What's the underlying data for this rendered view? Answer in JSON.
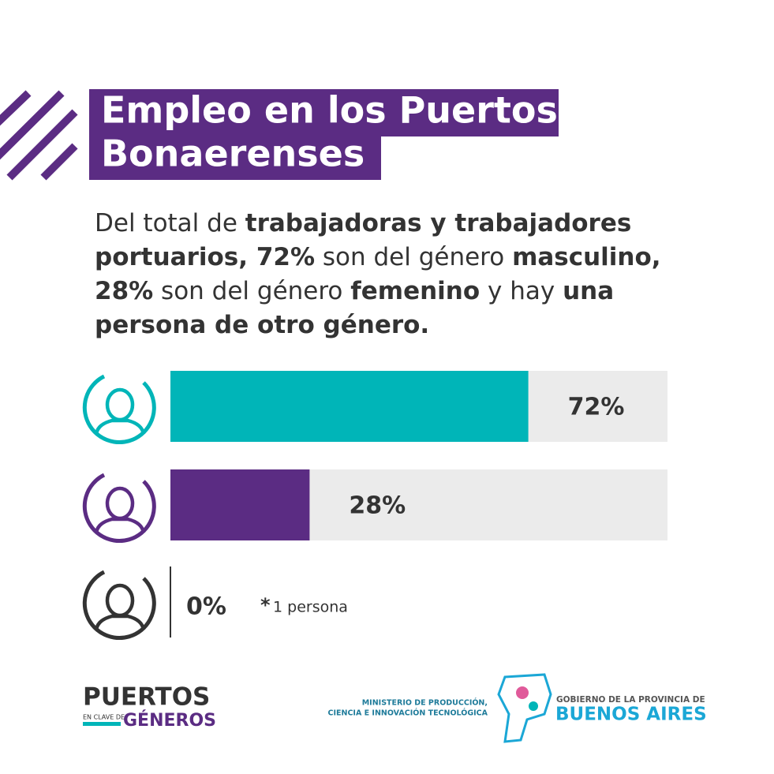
{
  "chart_data": {
    "type": "hbar",
    "title_lines": [
      "Empleo en los Puertos",
      "Bonaerenses"
    ],
    "subtitle_segments": [
      {
        "text": "Del total de ",
        "bold": false
      },
      {
        "text": "trabajadoras y trabajadores portuarios, 72%",
        "bold": true
      },
      {
        "text": " son del género ",
        "bold": false
      },
      {
        "text": "masculino, 28%",
        "bold": true
      },
      {
        "text": " son del género ",
        "bold": false
      },
      {
        "text": "femenino",
        "bold": true
      },
      {
        "text": " y hay ",
        "bold": false
      },
      {
        "text": "una persona de otro género.",
        "bold": true
      }
    ],
    "categories": [
      null,
      null,
      null
    ],
    "values": [
      72,
      28,
      0
    ],
    "value_labels": [
      "72%",
      "28%",
      "0%"
    ],
    "colors": [
      "#00b5b8",
      "#5b2c83",
      "#333333"
    ],
    "xlim": [
      0,
      100
    ],
    "annotation": {
      "marker": "*",
      "text": "1 persona"
    },
    "footer": {
      "brand_top": "PUERTOS",
      "brand_small": "EN CLAVE DE",
      "brand_bottom": "GÉNEROS",
      "ministry_lines": [
        "MINISTERIO DE PRODUCCIÓN,",
        "CIENCIA E INNOVACIÓN TECNOLÓGICA"
      ],
      "gov_top": "GOBIERNO DE LA PROVINCIA DE",
      "gov_bottom": "BUENOS AIRES"
    }
  }
}
